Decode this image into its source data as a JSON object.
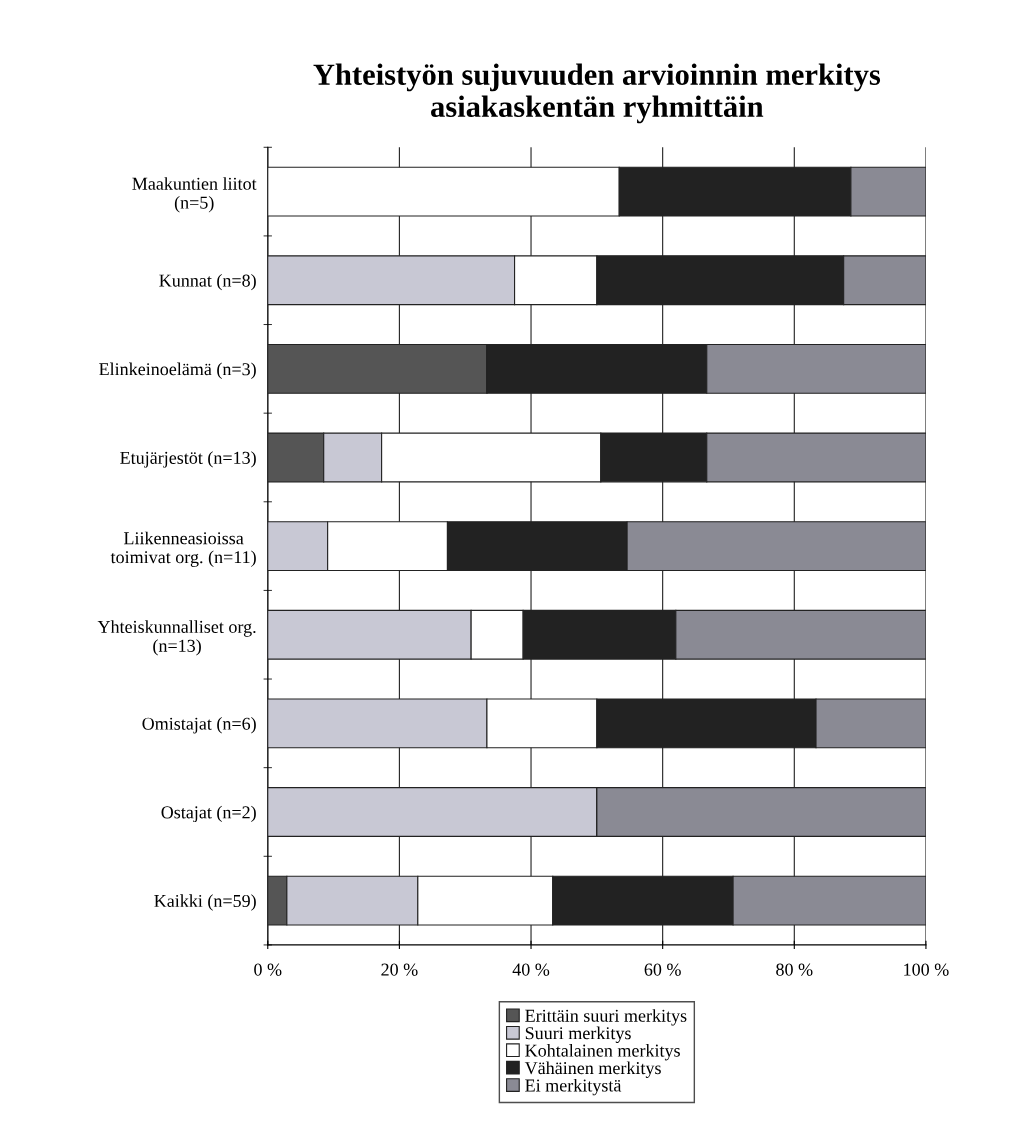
{
  "chart_data": {
    "type": "bar",
    "orientation": "horizontal",
    "stacked": true,
    "title": "Yhteistyön sujuvuuden arvioinnin merkitys\nasiakaskentän ryhmittäin",
    "categories": [
      "Maakuntien liitot\n(n=5)",
      "Kunnat (n=8)",
      "Elinkeinoelämä (n=3)",
      "Etujärjestöt (n=13)",
      "Liikenneasioissa\ntoimivat org. (n=11)",
      "Yhteiskunnalliset org.\n(n=13)",
      "Omistajat (n=6)",
      "Ostajat (n=2)",
      "Kaikki (n=59)"
    ],
    "series": [
      {
        "name": "Erittäin suuri merkitys",
        "color": "#555555",
        "values": [
          0,
          0,
          33.3,
          8.5,
          0,
          0,
          0,
          0,
          2.9
        ]
      },
      {
        "name": "Suuri merkitys",
        "color": "#c8c8d4",
        "values": [
          0,
          37.5,
          0,
          8.8,
          9.1,
          30.9,
          33.3,
          50,
          19.9
        ]
      },
      {
        "name": "Kohtalainen merkitys",
        "color": "#ffffff",
        "values": [
          53.4,
          12.5,
          0,
          33.3,
          18.2,
          7.9,
          16.7,
          0,
          20.5
        ]
      },
      {
        "name": "Vähäinen merkitys",
        "color": "#222222",
        "values": [
          35.2,
          37.5,
          33.4,
          16.1,
          27.3,
          23.2,
          33.3,
          0,
          27.4
        ]
      },
      {
        "name": "Ei merkitystä",
        "color": "#8a8a94",
        "values": [
          11.4,
          12.5,
          33.3,
          33.3,
          45.4,
          38.0,
          16.7,
          50,
          29.3
        ]
      }
    ],
    "xlim": [
      0,
      100
    ],
    "xticks": [
      {
        "value": 0,
        "label": "0 %"
      },
      {
        "value": 20,
        "label": "20 %"
      },
      {
        "value": 40,
        "label": "40 %"
      },
      {
        "value": 60,
        "label": "60 %"
      },
      {
        "value": 80,
        "label": "80 %"
      },
      {
        "value": 100,
        "label": "100 %"
      }
    ],
    "grid": "x",
    "legend": "bottom"
  }
}
